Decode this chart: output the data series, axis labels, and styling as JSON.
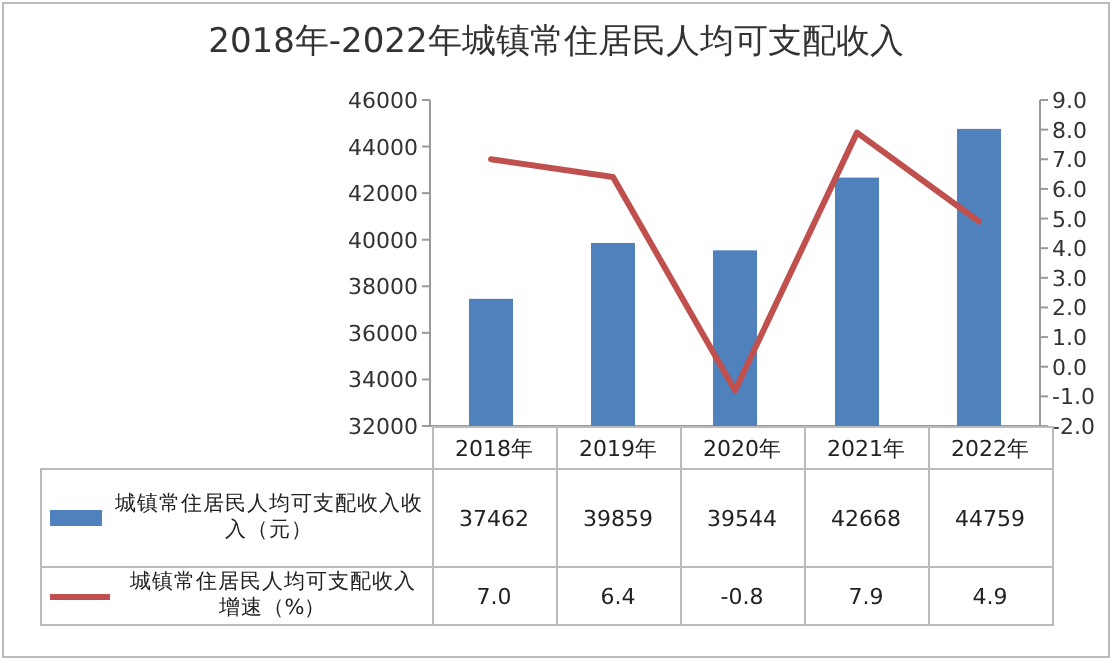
{
  "chart_data": {
    "type": "bar",
    "title": "2018年-2022年城镇常住居民人均可支配收入",
    "categories": [
      "2018年",
      "2019年",
      "2020年",
      "2021年",
      "2022年"
    ],
    "series": [
      {
        "name": "城镇常住居民人均可支配收入收入（元）",
        "color": "#4f81bd",
        "values": [
          37462,
          39859,
          39544,
          42668,
          44759
        ],
        "value_labels": [
          "37462",
          "39859",
          "39544",
          "42668",
          "44759"
        ]
      },
      {
        "name": "城镇常住居民人均可支配收入增速（%）",
        "type": "line",
        "axis": "y2",
        "color": "#c0504d",
        "values": [
          7.0,
          6.4,
          -0.8,
          7.9,
          4.9
        ],
        "value_labels": [
          "7.0",
          "6.4",
          "-0.8",
          "7.9",
          "4.9"
        ]
      }
    ],
    "ylim": [
      32000,
      46000
    ],
    "yticks": [
      32000,
      34000,
      36000,
      38000,
      40000,
      42000,
      44000,
      46000
    ],
    "y2lim": [
      -2,
      9
    ],
    "y2ticks": [
      {
        "value": -2,
        "label": "-2.0"
      },
      {
        "value": -1,
        "label": "-1.0"
      },
      {
        "value": 0,
        "label": "0.0"
      },
      {
        "value": 1,
        "label": "1.0"
      },
      {
        "value": 2,
        "label": "2.0"
      },
      {
        "value": 3,
        "label": "3.0"
      },
      {
        "value": 4,
        "label": "4.0"
      },
      {
        "value": 5,
        "label": "5.0"
      },
      {
        "value": 6,
        "label": "6.0"
      },
      {
        "value": 7,
        "label": "7.0"
      },
      {
        "value": 8,
        "label": "8.0"
      },
      {
        "value": 9,
        "label": "9.0"
      }
    ],
    "legend": "bottom",
    "grid": false,
    "marker": "none",
    "line_style": "solid"
  }
}
